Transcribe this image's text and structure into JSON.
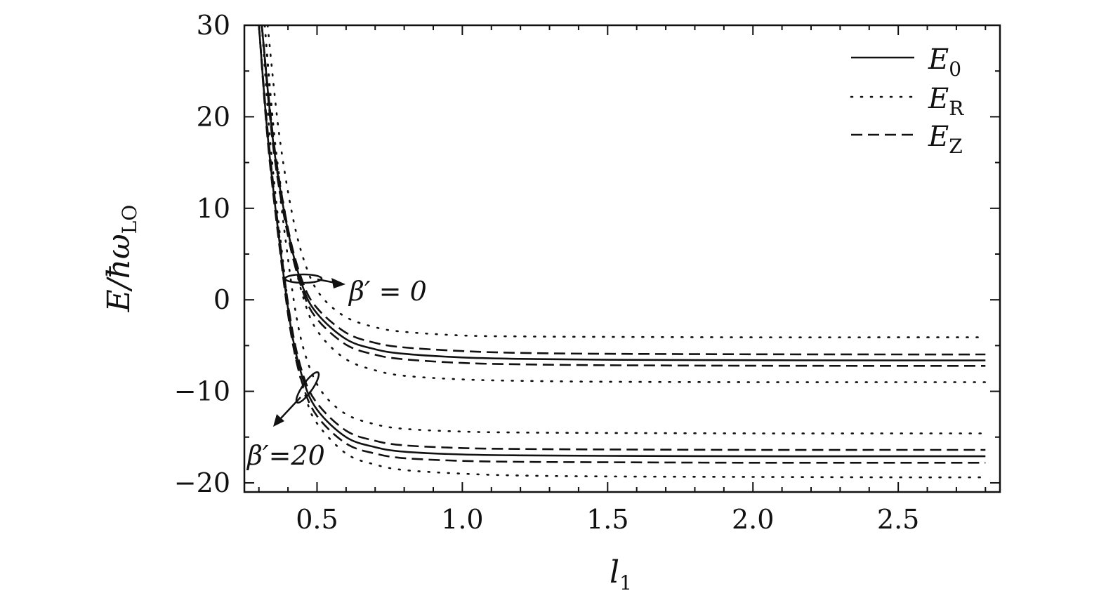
{
  "chart_data": {
    "type": "line",
    "xlabel": {
      "main": "l",
      "sub": "1"
    },
    "ylabel": {
      "main": "E/ħω",
      "sub": "LO"
    },
    "xlim": [
      0.25,
      2.85
    ],
    "ylim": [
      -21,
      30
    ],
    "xticks": [
      0.5,
      1.0,
      1.5,
      2.0,
      2.5
    ],
    "xtick_labels": [
      "0.5",
      "1.0",
      "1.5",
      "2.0",
      "2.5"
    ],
    "yticks": [
      -20,
      -10,
      0,
      10,
      20,
      30
    ],
    "ytick_labels": [
      "−20",
      "−10",
      "0",
      "10",
      "20",
      "30"
    ],
    "legend": {
      "position": "top-right",
      "entries": [
        {
          "style": "solid",
          "symbol": "E",
          "sub": "0"
        },
        {
          "style": "dotted",
          "symbol": "E",
          "sub": "R"
        },
        {
          "style": "dashed",
          "symbol": "E",
          "sub": "Z"
        }
      ]
    },
    "annotations": [
      {
        "text": "β′ = 0"
      },
      {
        "text": "β′=20"
      }
    ],
    "series": [
      {
        "group": "β′ = 0",
        "style": "solid",
        "x": [
          0.31,
          0.35,
          0.4,
          0.45,
          0.5,
          0.6,
          0.7,
          0.8,
          1.0,
          1.2,
          1.5,
          2.0,
          2.5,
          2.8
        ],
        "y": [
          30,
          17,
          7.5,
          1.5,
          -1.5,
          -4.3,
          -5.4,
          -5.9,
          -6.3,
          -6.45,
          -6.55,
          -6.6,
          -6.62,
          -6.62
        ]
      },
      {
        "group": "β′ = 0",
        "style": "dashed",
        "x": [
          0.31,
          0.35,
          0.4,
          0.45,
          0.5,
          0.6,
          0.7,
          0.8,
          1.0,
          1.2,
          1.5,
          2.0,
          2.5,
          2.8
        ],
        "y": [
          30,
          17.5,
          7.8,
          2.0,
          -0.9,
          -3.6,
          -4.7,
          -5.2,
          -5.6,
          -5.8,
          -5.9,
          -5.95,
          -5.97,
          -5.97
        ]
      },
      {
        "group": "β′ = 0",
        "style": "dashed",
        "x": [
          0.31,
          0.35,
          0.4,
          0.45,
          0.5,
          0.6,
          0.7,
          0.8,
          1.0,
          1.2,
          1.5,
          2.0,
          2.5,
          2.8
        ],
        "y": [
          30,
          16.5,
          7.0,
          1.0,
          -2.1,
          -4.9,
          -6.0,
          -6.5,
          -6.9,
          -7.05,
          -7.15,
          -7.2,
          -7.22,
          -7.22
        ]
      },
      {
        "group": "β′ = 0",
        "style": "dotted",
        "x": [
          0.33,
          0.37,
          0.42,
          0.47,
          0.52,
          0.6,
          0.7,
          0.8,
          1.0,
          1.2,
          1.5,
          2.0,
          2.5,
          2.8
        ],
        "y": [
          30,
          18,
          8.5,
          3.0,
          0.2,
          -1.9,
          -3.0,
          -3.5,
          -3.9,
          -4.0,
          -4.05,
          -4.1,
          -4.1,
          -4.1
        ]
      },
      {
        "group": "β′ = 0",
        "style": "dotted",
        "x": [
          0.32,
          0.36,
          0.41,
          0.46,
          0.51,
          0.6,
          0.7,
          0.8,
          1.0,
          1.2,
          1.5,
          2.0,
          2.5,
          2.8
        ],
        "y": [
          30,
          16,
          6.0,
          -0.5,
          -3.8,
          -6.5,
          -7.7,
          -8.3,
          -8.7,
          -8.85,
          -8.95,
          -9.0,
          -9.0,
          -9.0
        ]
      },
      {
        "group": "β′=20",
        "style": "solid",
        "x": [
          0.3,
          0.33,
          0.37,
          0.41,
          0.45,
          0.5,
          0.6,
          0.7,
          0.8,
          1.0,
          1.2,
          1.5,
          2.0,
          2.5,
          2.8
        ],
        "y": [
          30,
          18,
          6.5,
          -3.0,
          -8.5,
          -12.0,
          -15.0,
          -16.1,
          -16.6,
          -16.9,
          -17.0,
          -17.05,
          -17.1,
          -17.1,
          -17.1
        ]
      },
      {
        "group": "β′=20",
        "style": "dashed",
        "x": [
          0.3,
          0.33,
          0.37,
          0.41,
          0.45,
          0.5,
          0.6,
          0.7,
          0.8,
          1.0,
          1.2,
          1.5,
          2.0,
          2.5,
          2.8
        ],
        "y": [
          30,
          18.5,
          7.0,
          -2.4,
          -8.0,
          -11.3,
          -14.3,
          -15.4,
          -15.9,
          -16.2,
          -16.3,
          -16.35,
          -16.4,
          -16.4,
          -16.4
        ]
      },
      {
        "group": "β′=20",
        "style": "dashed",
        "x": [
          0.3,
          0.33,
          0.37,
          0.41,
          0.45,
          0.5,
          0.6,
          0.7,
          0.8,
          1.0,
          1.2,
          1.5,
          2.0,
          2.5,
          2.8
        ],
        "y": [
          30,
          17.5,
          6.0,
          -3.6,
          -9.2,
          -12.7,
          -15.7,
          -16.8,
          -17.3,
          -17.6,
          -17.7,
          -17.75,
          -17.8,
          -17.8,
          -17.8
        ]
      },
      {
        "group": "β′=20",
        "style": "dotted",
        "x": [
          0.32,
          0.35,
          0.39,
          0.43,
          0.47,
          0.52,
          0.6,
          0.7,
          0.8,
          1.0,
          1.2,
          1.5,
          2.0,
          2.5,
          2.8
        ],
        "y": [
          30,
          18,
          7.0,
          -2.0,
          -7.0,
          -10.2,
          -12.5,
          -13.6,
          -14.1,
          -14.4,
          -14.5,
          -14.55,
          -14.6,
          -14.6,
          -14.6
        ]
      },
      {
        "group": "β′=20",
        "style": "dotted",
        "x": [
          0.31,
          0.34,
          0.38,
          0.42,
          0.46,
          0.5,
          0.6,
          0.7,
          0.8,
          1.0,
          1.2,
          1.5,
          2.0,
          2.5,
          2.8
        ],
        "y": [
          30,
          17,
          5.0,
          -5.0,
          -10.5,
          -13.5,
          -16.8,
          -18.0,
          -18.6,
          -19.0,
          -19.2,
          -19.3,
          -19.35,
          -19.4,
          -19.4
        ]
      }
    ]
  }
}
